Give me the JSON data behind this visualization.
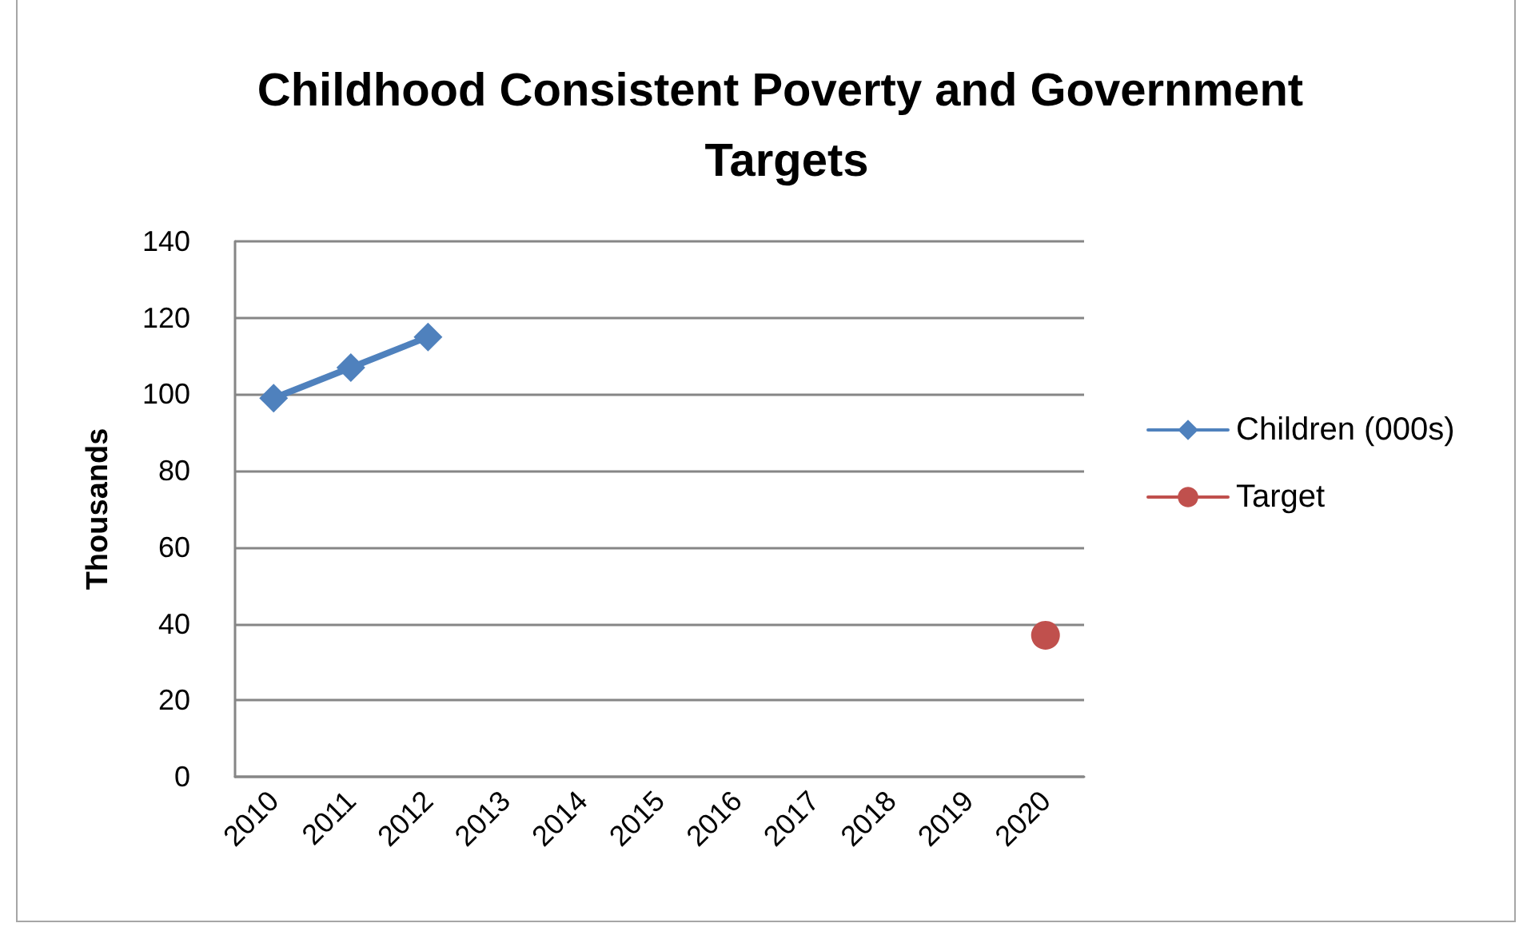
{
  "chart_data": {
    "type": "line",
    "title": "Childhood Consistent Poverty and Government Targets",
    "ylabel": "Thousands",
    "categories": [
      "2010",
      "2011",
      "2012",
      "2013",
      "2014",
      "2015",
      "2016",
      "2017",
      "2018",
      "2019",
      "2020"
    ],
    "series": [
      {
        "name": "Children (000s)",
        "color": "#4f81bd",
        "marker": "diamond",
        "values": [
          99,
          107,
          115,
          null,
          null,
          null,
          null,
          null,
          null,
          null,
          null
        ]
      },
      {
        "name": "Target",
        "color": "#c0504d",
        "marker": "circle",
        "values": [
          null,
          null,
          null,
          null,
          null,
          null,
          null,
          null,
          null,
          null,
          37
        ]
      }
    ],
    "ylim": [
      0,
      140
    ],
    "yticks": [
      0,
      20,
      40,
      60,
      80,
      100,
      120,
      140
    ],
    "grid": "y",
    "legend": "right",
    "line_style": "solid"
  }
}
